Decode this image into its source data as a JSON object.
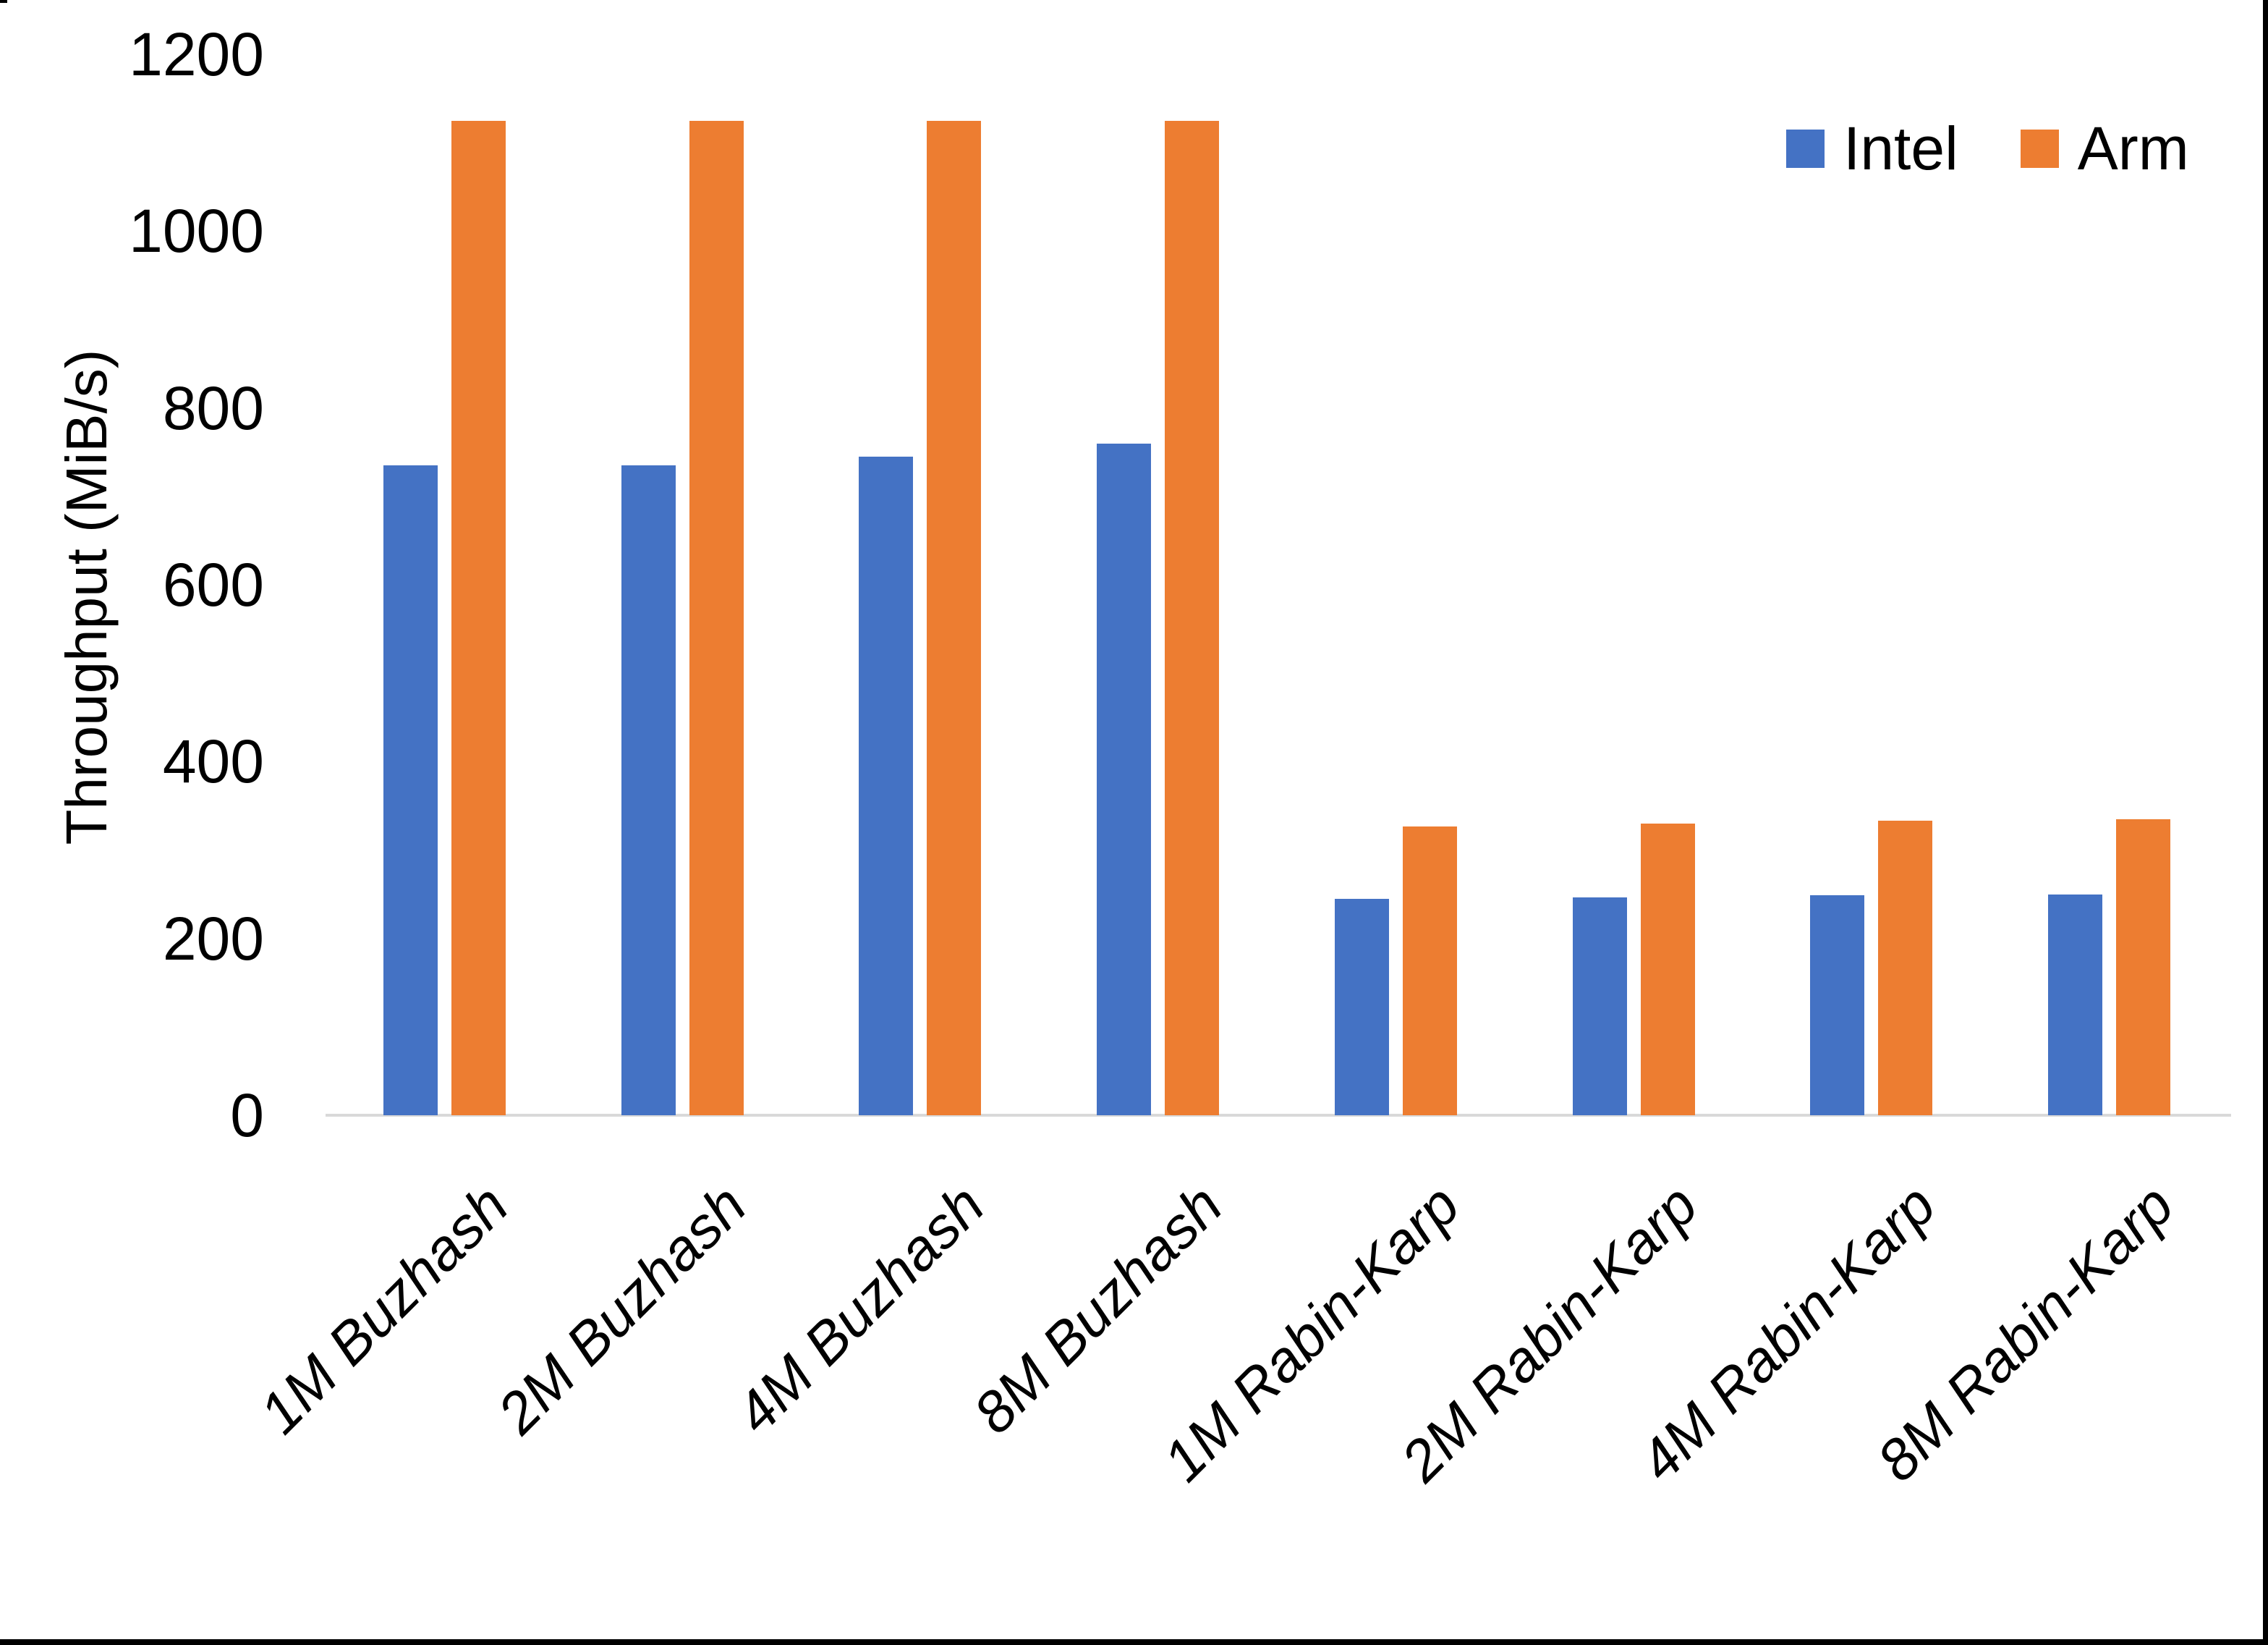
{
  "chart_data": {
    "type": "bar",
    "title": "",
    "xlabel": "",
    "ylabel": "Throughput (MiB/s)",
    "ylim": [
      0,
      1200
    ],
    "yticks": [
      0,
      200,
      400,
      600,
      800,
      1000,
      1200
    ],
    "grid": false,
    "legend_position": "top-right",
    "categories": [
      "1M Buzhash",
      "2M Buzhash",
      "4M Buzhash",
      "8M Buzhash",
      "1M Rabin-Karp",
      "2M Rabin-Karp",
      "4M Rabin-Karp",
      "8M Rabin-Karp"
    ],
    "series": [
      {
        "name": "Intel",
        "color": "#4472C4",
        "values": [
          735,
          735,
          745,
          760,
          245,
          246,
          249,
          250
        ]
      },
      {
        "name": "Arm",
        "color": "#ED7D31",
        "values": [
          1125,
          1125,
          1125,
          1125,
          327,
          330,
          333,
          335
        ]
      }
    ]
  },
  "legend": {
    "items": [
      {
        "label": "Intel",
        "color": "#4472C4"
      },
      {
        "label": "Arm",
        "color": "#ED7D31"
      }
    ]
  },
  "colors": {
    "background": "#FFFFFF",
    "axis_line": "#D9D9D9",
    "text": "#000000",
    "frame": "#000000"
  }
}
